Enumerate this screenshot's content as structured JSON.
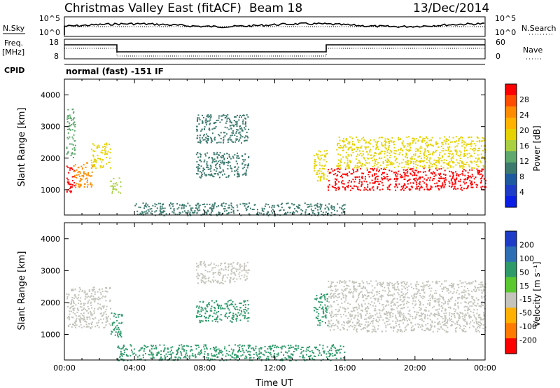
{
  "header": {
    "title": "Christmas Valley East (fitACF)",
    "beam": "Beam 18",
    "date": "13/Dec/2014"
  },
  "top_panels": {
    "nsky_label": "N.Sky",
    "nsky_ticks": [
      "10^5",
      "10^0"
    ],
    "nsearch_label": "N.Search",
    "nsearch_ticks": [
      "10^5",
      "10^0"
    ],
    "freq_label_1": "Freq.",
    "freq_label_2": "[MHz]",
    "freq_ticks": [
      "18",
      "8"
    ],
    "nave_label": "Nave",
    "nave_ticks": [
      "60",
      "0"
    ],
    "cpid_label": "CPID",
    "cpid_value": "normal (fast) -151 IF"
  },
  "chart_data": [
    {
      "type": "heatmap",
      "name": "power",
      "ylabel": "Slant Range [km]",
      "ylim": [
        200,
        4500
      ],
      "yticks": [
        1000,
        2000,
        3000,
        4000
      ],
      "xlim": [
        0,
        24
      ],
      "colorbar": {
        "label": "Power [dB]",
        "ticks": [
          "28",
          "24",
          "20",
          "16",
          "12",
          "8",
          "4"
        ],
        "colors": [
          "#ff0000",
          "#ff4d00",
          "#ff8c00",
          "#ffb300",
          "#e6d200",
          "#a8d040",
          "#5fa86e",
          "#3d7a6e",
          "#1e5aa0",
          "#1e3cc8",
          "#0a1ee6"
        ]
      },
      "blobs": [
        {
          "t0": 0.1,
          "t1": 0.55,
          "r0": 900,
          "r1": 1800,
          "v": 28
        },
        {
          "t0": 0.5,
          "t1": 1.6,
          "r0": 1100,
          "r1": 1900,
          "v": 22
        },
        {
          "t0": 1.5,
          "t1": 2.6,
          "r0": 1700,
          "r1": 2500,
          "v": 18
        },
        {
          "t0": 0.1,
          "t1": 0.6,
          "r0": 2000,
          "r1": 3600,
          "v": 12
        },
        {
          "t0": 2.6,
          "t1": 3.2,
          "r0": 900,
          "r1": 1400,
          "v": 14
        },
        {
          "t0": 7.5,
          "t1": 10.5,
          "r0": 2500,
          "r1": 3400,
          "v": 8
        },
        {
          "t0": 7.5,
          "t1": 10.5,
          "r0": 1400,
          "r1": 2200,
          "v": 8
        },
        {
          "t0": 14.2,
          "t1": 15.0,
          "r0": 1300,
          "r1": 2300,
          "v": 18
        },
        {
          "t0": 15.0,
          "t1": 24.0,
          "r0": 1000,
          "r1": 1700,
          "v": 28
        },
        {
          "t0": 15.5,
          "t1": 24.0,
          "r0": 1700,
          "r1": 2700,
          "v": 16
        },
        {
          "t0": 4.0,
          "t1": 16.0,
          "r0": 200,
          "r1": 600,
          "v": 8
        }
      ]
    },
    {
      "type": "heatmap",
      "name": "velocity",
      "ylabel": "Slant Range [km]",
      "xlabel": "Time UT",
      "ylim": [
        200,
        4500
      ],
      "yticks": [
        1000,
        2000,
        3000,
        4000
      ],
      "xlim": [
        0,
        24
      ],
      "xticks": [
        "00:00",
        "04:00",
        "08:00",
        "12:00",
        "16:00",
        "20:00",
        "00:00"
      ],
      "colorbar": {
        "label": "Velocity [m s⁻¹]",
        "ticks": [
          "200",
          "100",
          "50",
          "15",
          "-15",
          "-50",
          "-100",
          "-200"
        ],
        "colors": [
          "#1e3cc8",
          "#2e6eb4",
          "#2e9a6a",
          "#5ac82e",
          "#c4c4bc",
          "#ffb000",
          "#ff7a00",
          "#ff0000"
        ]
      },
      "blobs": [
        {
          "t0": 0.1,
          "t1": 2.6,
          "r0": 1200,
          "r1": 2500,
          "v": 0
        },
        {
          "t0": 2.6,
          "t1": 3.3,
          "r0": 900,
          "r1": 1700,
          "v": 40
        },
        {
          "t0": 7.5,
          "t1": 10.5,
          "r0": 2600,
          "r1": 3300,
          "v": 0
        },
        {
          "t0": 7.5,
          "t1": 10.5,
          "r0": 1400,
          "r1": 2100,
          "v": 60
        },
        {
          "t0": 14.2,
          "t1": 15.0,
          "r0": 1300,
          "r1": 2300,
          "v": 40
        },
        {
          "t0": 15.0,
          "t1": 24.0,
          "r0": 1100,
          "r1": 2700,
          "v": 0
        },
        {
          "t0": 3.0,
          "t1": 16.0,
          "r0": 200,
          "r1": 700,
          "v": 40
        }
      ]
    }
  ]
}
